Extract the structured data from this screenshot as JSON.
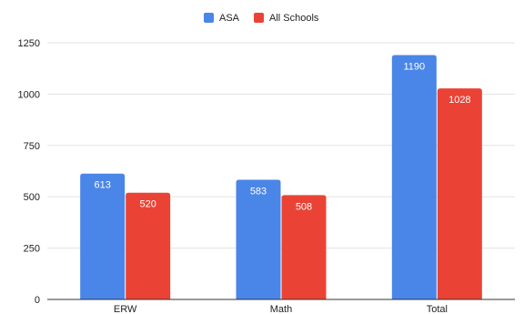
{
  "chart_data": {
    "type": "bar",
    "categories": [
      "ERW",
      "Math",
      "Total"
    ],
    "series": [
      {
        "name": "ASA",
        "values": [
          613,
          583,
          1190
        ],
        "color": "#4a86e8"
      },
      {
        "name": "All Schools",
        "values": [
          520,
          508,
          1028
        ],
        "color": "#ea4335"
      }
    ],
    "title": "",
    "xlabel": "",
    "ylabel": "",
    "ylim": [
      0,
      1250
    ],
    "yticks": [
      "0",
      "250",
      "500",
      "750",
      "1000",
      "1250"
    ],
    "grid": true,
    "legend_position": "top-center",
    "data_labels": true
  }
}
